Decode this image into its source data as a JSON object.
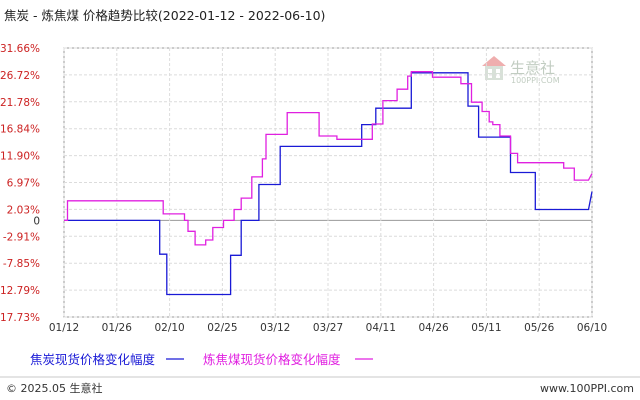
{
  "chart_data": {
    "type": "line",
    "title": "焦炭 - 炼焦煤 价格趋势比较(2022-01-12 - 2022-06-10)",
    "x_tick_labels": [
      "01/12",
      "01/26",
      "02/10",
      "02/25",
      "03/12",
      "03/27",
      "04/11",
      "04/26",
      "05/11",
      "05/26",
      "06/10"
    ],
    "y_tick_labels": [
      "31.66%",
      "26.72%",
      "21.78%",
      "16.84%",
      "11.90%",
      "6.97%",
      "2.03%",
      "0",
      "-2.91%",
      "-7.85%",
      "-12.79%",
      "-17.73%"
    ],
    "y_tick_values": [
      31.66,
      26.72,
      21.78,
      16.84,
      11.9,
      6.97,
      2.03,
      0,
      -2.91,
      -7.85,
      -12.79,
      -17.73
    ],
    "ylim": [
      -17.73,
      31.66
    ],
    "xlim": [
      "2022-01-12",
      "2022-06-10"
    ],
    "grid": true,
    "legend_position": "bottom-left",
    "series": [
      {
        "name": "焦炭现货价格变化幅度",
        "color": "#1a1ad6",
        "x": [
          "2022-01-12",
          "2022-02-08",
          "2022-02-08",
          "2022-02-10",
          "2022-02-10",
          "2022-02-28",
          "2022-02-28",
          "2022-03-03",
          "2022-03-03",
          "2022-03-08",
          "2022-03-08",
          "2022-03-14",
          "2022-03-14",
          "2022-04-06",
          "2022-04-06",
          "2022-04-10",
          "2022-04-10",
          "2022-04-20",
          "2022-04-20",
          "2022-05-06",
          "2022-05-06",
          "2022-05-09",
          "2022-05-09",
          "2022-05-18",
          "2022-05-18",
          "2022-05-25",
          "2022-05-25",
          "2022-06-09",
          "2022-06-10"
        ],
        "y": [
          0,
          0,
          -6.2,
          -6.2,
          -13.6,
          -13.6,
          -6.4,
          -6.4,
          0,
          0,
          6.6,
          6.6,
          13.6,
          13.6,
          17.6,
          17.6,
          20.6,
          20.6,
          27.1,
          27.1,
          21.0,
          21.0,
          15.3,
          15.3,
          8.8,
          8.8,
          2.0,
          2.0,
          5.3
        ]
      },
      {
        "name": "炼焦煤现货价格变化幅度",
        "color": "#e020e0",
        "x": [
          "2022-01-12",
          "2022-01-13",
          "2022-01-13",
          "2022-02-09",
          "2022-02-09",
          "2022-02-15",
          "2022-02-15",
          "2022-02-16",
          "2022-02-16",
          "2022-02-18",
          "2022-02-18",
          "2022-02-21",
          "2022-02-21",
          "2022-02-23",
          "2022-02-23",
          "2022-02-26",
          "2022-02-26",
          "2022-03-01",
          "2022-03-01",
          "2022-03-03",
          "2022-03-03",
          "2022-03-06",
          "2022-03-06",
          "2022-03-09",
          "2022-03-09",
          "2022-03-10",
          "2022-03-10",
          "2022-03-16",
          "2022-03-16",
          "2022-03-25",
          "2022-03-25",
          "2022-03-30",
          "2022-03-30",
          "2022-04-09",
          "2022-04-09",
          "2022-04-12",
          "2022-04-12",
          "2022-04-16",
          "2022-04-16",
          "2022-04-19",
          "2022-04-19",
          "2022-04-20",
          "2022-04-20",
          "2022-04-26",
          "2022-04-26",
          "2022-05-04",
          "2022-05-04",
          "2022-05-07",
          "2022-05-07",
          "2022-05-10",
          "2022-05-10",
          "2022-05-12",
          "2022-05-12",
          "2022-05-13",
          "2022-05-13",
          "2022-05-15",
          "2022-05-15",
          "2022-05-18",
          "2022-05-18",
          "2022-05-20",
          "2022-05-20",
          "2022-06-02",
          "2022-06-02",
          "2022-06-05",
          "2022-06-05",
          "2022-06-09",
          "2022-06-10"
        ],
        "y": [
          0,
          0,
          3.6,
          3.6,
          1.2,
          1.2,
          0,
          0,
          -2.0,
          -2.0,
          -4.5,
          -4.5,
          -3.6,
          -3.6,
          -1.3,
          -1.3,
          0,
          0,
          2.0,
          2.0,
          4.1,
          4.1,
          8.0,
          8.0,
          11.3,
          11.3,
          15.8,
          15.8,
          19.8,
          19.8,
          15.5,
          15.5,
          14.9,
          14.9,
          17.7,
          17.7,
          22.0,
          22.0,
          24.1,
          24.1,
          26.5,
          26.5,
          27.3,
          27.3,
          26.3,
          26.3,
          25.1,
          25.1,
          21.7,
          21.7,
          20.0,
          20.0,
          18.1,
          18.1,
          17.6,
          17.6,
          15.5,
          15.5,
          12.3,
          12.3,
          10.6,
          10.6,
          9.6,
          9.6,
          7.4,
          7.4,
          8.6
        ]
      }
    ]
  },
  "legend": {
    "items": [
      {
        "label": "焦炭现货价格变化幅度",
        "color": "#1a1ad6"
      },
      {
        "label": "炼焦煤现货价格变化幅度",
        "color": "#e020e0"
      }
    ]
  },
  "watermark": {
    "brand": "生意社",
    "url": "100PPI.COM"
  },
  "footer": {
    "copyright": "© 2025.05 生意社",
    "site": "www.100PPI.com"
  }
}
